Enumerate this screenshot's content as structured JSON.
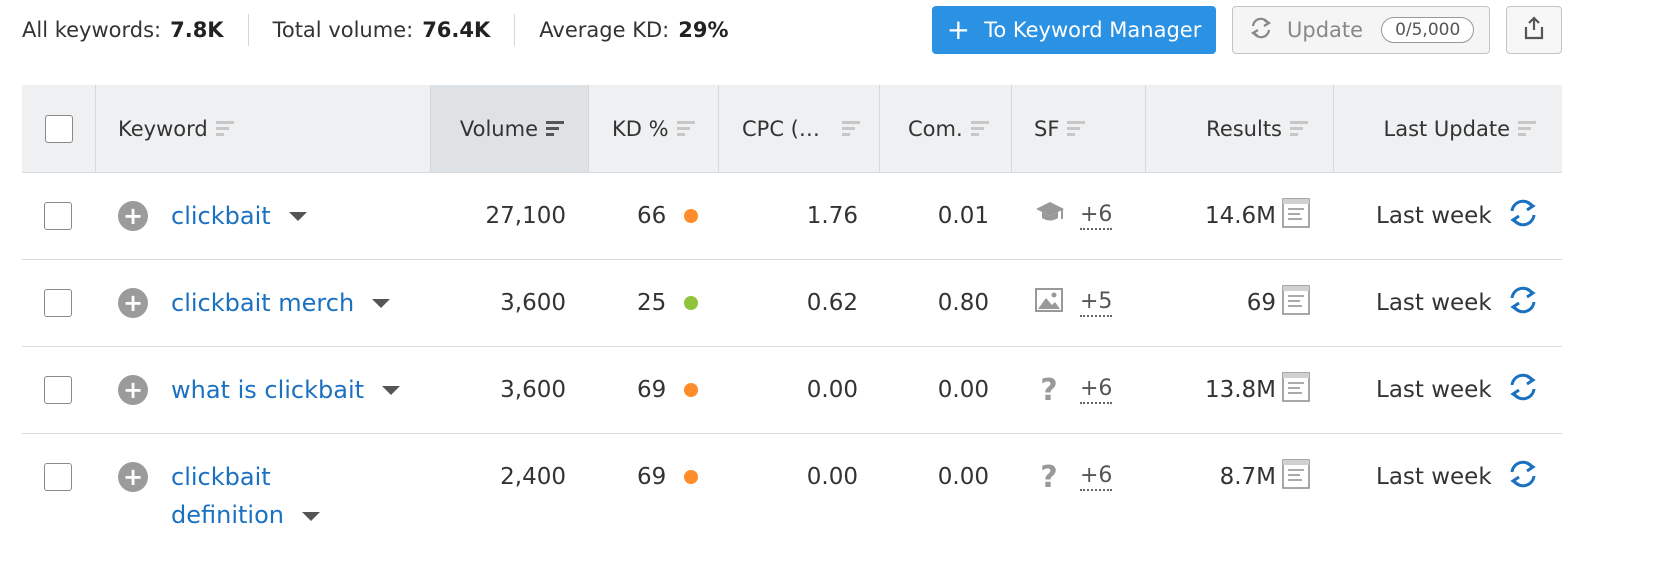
{
  "stats": {
    "all_keywords_label": "All keywords:",
    "all_keywords_value": "7.8K",
    "total_volume_label": "Total volume:",
    "total_volume_value": "76.4K",
    "avg_kd_label": "Average KD:",
    "avg_kd_value": "29%"
  },
  "actions": {
    "keyword_manager_label": "To Keyword Manager",
    "update_label": "Update",
    "update_quota": "0/5,000",
    "export_icon": "export-icon"
  },
  "columns": {
    "keyword": "Keyword",
    "volume": "Volume",
    "kd": "KD %",
    "cpc": "CPC (…",
    "com": "Com.",
    "sf": "SF",
    "results": "Results",
    "last_update": "Last Update"
  },
  "colors": {
    "accent": "#2b91e3",
    "link": "#1b71c1",
    "kd_hard": "#ff8c2a",
    "kd_easy": "#8fc43a"
  },
  "rows": [
    {
      "keyword": "clickbait",
      "volume": "27,100",
      "kd": "66",
      "kd_level": "hard",
      "cpc": "1.76",
      "com": "0.01",
      "sf_icon": "graduation-cap-icon",
      "sf_more": "+6",
      "results": "14.6M",
      "last_update": "Last week"
    },
    {
      "keyword": "clickbait merch",
      "volume": "3,600",
      "kd": "25",
      "kd_level": "easy",
      "cpc": "0.62",
      "com": "0.80",
      "sf_icon": "image-icon",
      "sf_more": "+5",
      "results": "69",
      "last_update": "Last week"
    },
    {
      "keyword": "what is clickbait",
      "volume": "3,600",
      "kd": "69",
      "kd_level": "hard",
      "cpc": "0.00",
      "com": "0.00",
      "sf_icon": "question-icon",
      "sf_more": "+6",
      "results": "13.8M",
      "last_update": "Last week"
    },
    {
      "keyword_line1": "clickbait",
      "keyword_line2": "definition",
      "volume": "2,400",
      "kd": "69",
      "kd_level": "hard",
      "cpc": "0.00",
      "com": "0.00",
      "sf_icon": "question-icon",
      "sf_more": "+6",
      "results": "8.7M",
      "last_update": "Last week"
    }
  ]
}
